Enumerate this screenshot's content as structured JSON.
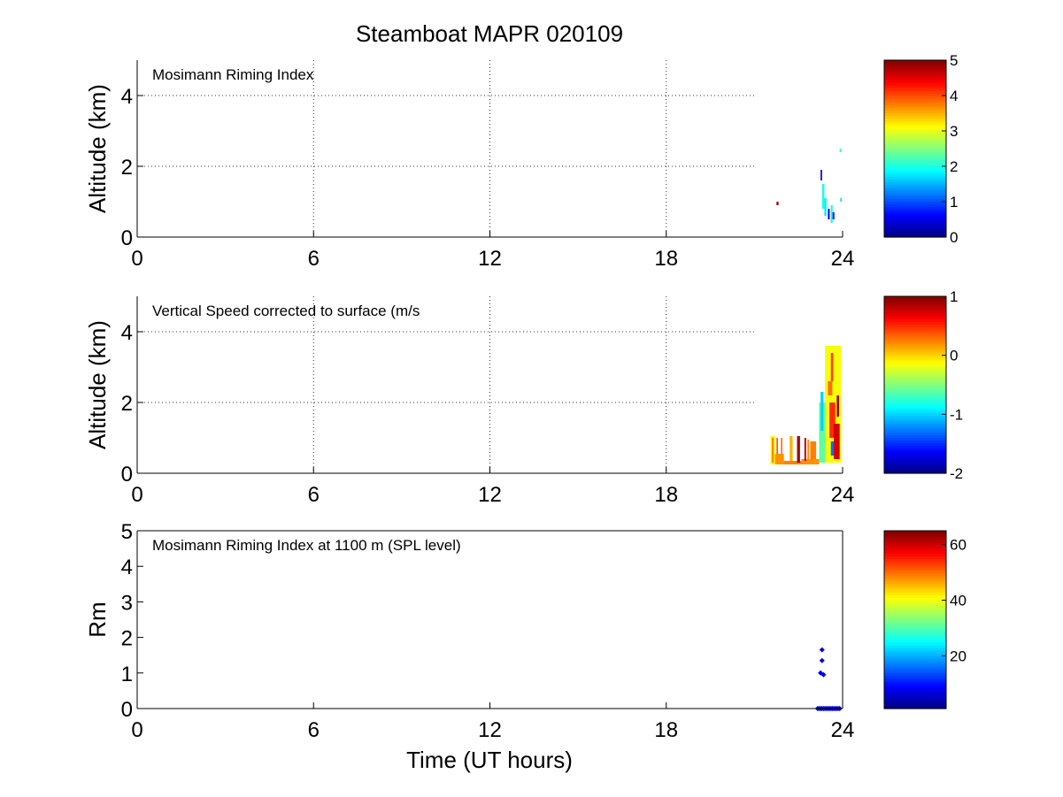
{
  "figure": {
    "title": "Steamboat MAPR 020109",
    "xlabel": "Time (UT hours)",
    "background": "#ffffff"
  },
  "chart_data": [
    {
      "type": "heatmap",
      "annotation": "Mosimann Riming Index",
      "ylabel": "Altitude (km)",
      "xlim": [
        0,
        24
      ],
      "ylim": [
        0,
        5
      ],
      "x_ticks": [
        "0",
        "6",
        "12",
        "18",
        "24"
      ],
      "y_ticks": [
        "0",
        "2",
        "4"
      ],
      "y_tick_values": [
        0,
        2,
        4
      ],
      "grid": true,
      "grid_note": "dotted grid lines stop near x=21 h",
      "colorbar": {
        "min": 0,
        "max": 5,
        "ticks": [
          "0",
          "1",
          "2",
          "3",
          "4",
          "5"
        ],
        "tick_values": [
          0,
          1,
          2,
          3,
          4,
          5
        ]
      },
      "cells": [
        {
          "t0": 21.75,
          "t1": 21.82,
          "z0": 0.9,
          "z1": 1.0,
          "v": 4.8
        },
        {
          "t0": 23.25,
          "t1": 23.3,
          "z0": 1.6,
          "z1": 1.9,
          "v": 0.3
        },
        {
          "t0": 23.3,
          "t1": 23.38,
          "z0": 0.8,
          "z1": 1.5,
          "v": 2.0
        },
        {
          "t0": 23.38,
          "t1": 23.45,
          "z0": 0.6,
          "z1": 1.1,
          "v": 1.8
        },
        {
          "t0": 23.5,
          "t1": 23.56,
          "z0": 0.5,
          "z1": 0.8,
          "v": 0.5
        },
        {
          "t0": 23.6,
          "t1": 23.66,
          "z0": 0.4,
          "z1": 0.9,
          "v": 1.9
        },
        {
          "t0": 23.66,
          "t1": 23.72,
          "z0": 0.5,
          "z1": 0.7,
          "v": 0.6
        },
        {
          "t0": 23.9,
          "t1": 23.95,
          "z0": 2.4,
          "z1": 2.5,
          "v": 2.0
        },
        {
          "t0": 23.92,
          "t1": 23.97,
          "z0": 1.0,
          "z1": 1.1,
          "v": 1.7
        }
      ]
    },
    {
      "type": "heatmap",
      "annotation": "Vertical Speed corrected to surface (m/s",
      "ylabel": "Altitude (km)",
      "xlim": [
        0,
        24
      ],
      "ylim": [
        0,
        5
      ],
      "x_ticks": [
        "0",
        "6",
        "12",
        "18",
        "24"
      ],
      "y_ticks": [
        "0",
        "2",
        "4"
      ],
      "y_tick_values": [
        0,
        2,
        4
      ],
      "grid": true,
      "grid_note": "dotted grid lines stop near x=21 h",
      "colorbar": {
        "min": -2,
        "max": 1,
        "ticks": [
          "-2",
          "-1",
          "0",
          "1"
        ],
        "tick_values": [
          -2,
          -1,
          0,
          1
        ]
      },
      "cells": [
        {
          "t0": 21.55,
          "t1": 21.7,
          "z0": 0.25,
          "z1": 1.05,
          "v": -0.1
        },
        {
          "t0": 21.6,
          "t1": 21.65,
          "z0": 0.3,
          "z1": 1.0,
          "v": 0.3
        },
        {
          "t0": 21.7,
          "t1": 22.0,
          "z0": 0.25,
          "z1": 0.55,
          "v": 0.2
        },
        {
          "t0": 21.75,
          "t1": 21.8,
          "z0": 0.55,
          "z1": 1.0,
          "v": 0.4
        },
        {
          "t0": 21.9,
          "t1": 21.95,
          "z0": 0.55,
          "z1": 1.0,
          "v": 0.3
        },
        {
          "t0": 22.0,
          "t1": 22.6,
          "z0": 0.25,
          "z1": 0.35,
          "v": 0.25
        },
        {
          "t0": 22.2,
          "t1": 22.3,
          "z0": 0.35,
          "z1": 1.05,
          "v": 0.1
        },
        {
          "t0": 22.45,
          "t1": 22.55,
          "z0": 0.3,
          "z1": 1.05,
          "v": 0.9
        },
        {
          "t0": 22.6,
          "t1": 23.2,
          "z0": 0.25,
          "z1": 0.4,
          "v": 0.2
        },
        {
          "t0": 22.7,
          "t1": 22.76,
          "z0": 0.35,
          "z1": 1.0,
          "v": 0.8
        },
        {
          "t0": 22.8,
          "t1": 22.86,
          "z0": 0.35,
          "z1": 0.95,
          "v": 0.2
        },
        {
          "t0": 22.9,
          "t1": 23.1,
          "z0": 0.4,
          "z1": 0.9,
          "v": 0.25
        },
        {
          "t0": 23.2,
          "t1": 23.4,
          "z0": 0.3,
          "z1": 2.0,
          "v": -0.6
        },
        {
          "t0": 23.25,
          "t1": 23.35,
          "z0": 1.2,
          "z1": 2.3,
          "v": -1.0
        },
        {
          "t0": 23.4,
          "t1": 23.95,
          "z0": 0.3,
          "z1": 3.6,
          "v": -0.15
        },
        {
          "t0": 23.5,
          "t1": 23.65,
          "z0": 2.2,
          "z1": 2.6,
          "v": 0.3
        },
        {
          "t0": 23.55,
          "t1": 23.75,
          "z0": 1.0,
          "z1": 2.0,
          "v": 0.5
        },
        {
          "t0": 23.6,
          "t1": 23.68,
          "z0": 2.6,
          "z1": 3.4,
          "v": 0.45
        },
        {
          "t0": 23.7,
          "t1": 23.9,
          "z0": 0.4,
          "z1": 1.4,
          "v": 0.75
        },
        {
          "t0": 23.6,
          "t1": 23.7,
          "z0": 0.5,
          "z1": 0.9,
          "v": -1.3
        },
        {
          "t0": 23.8,
          "t1": 23.88,
          "z0": 1.6,
          "z1": 2.2,
          "v": 0.9
        }
      ]
    },
    {
      "type": "scatter",
      "annotation": "Mosimann Riming Index at 1100 m (SPL level)",
      "ylabel": "Rm",
      "xlim": [
        0,
        24
      ],
      "ylim": [
        0,
        5
      ],
      "x_ticks": [
        "0",
        "6",
        "12",
        "18",
        "24"
      ],
      "y_ticks": [
        "0",
        "1",
        "2",
        "3",
        "4",
        "5"
      ],
      "y_tick_values": [
        0,
        1,
        2,
        3,
        4,
        5
      ],
      "grid": false,
      "colorbar": {
        "min": 1,
        "max": 65,
        "ticks": [
          "20",
          "40",
          "60"
        ],
        "tick_values": [
          20,
          40,
          60
        ]
      },
      "points": [
        {
          "x": 23.15,
          "y": 0.0
        },
        {
          "x": 23.2,
          "y": 0.0
        },
        {
          "x": 23.25,
          "y": 0.0
        },
        {
          "x": 23.3,
          "y": 0.0
        },
        {
          "x": 23.35,
          "y": 0.0
        },
        {
          "x": 23.4,
          "y": 0.0
        },
        {
          "x": 23.45,
          "y": 0.0
        },
        {
          "x": 23.5,
          "y": 0.0
        },
        {
          "x": 23.55,
          "y": 0.0
        },
        {
          "x": 23.6,
          "y": 0.0
        },
        {
          "x": 23.65,
          "y": 0.0
        },
        {
          "x": 23.7,
          "y": 0.0
        },
        {
          "x": 23.75,
          "y": 0.0
        },
        {
          "x": 23.8,
          "y": 0.0
        },
        {
          "x": 23.85,
          "y": 0.0
        },
        {
          "x": 23.9,
          "y": 0.0
        },
        {
          "x": 23.25,
          "y": 1.0
        },
        {
          "x": 23.35,
          "y": 0.95
        },
        {
          "x": 23.3,
          "y": 1.35
        },
        {
          "x": 23.3,
          "y": 1.65
        }
      ]
    }
  ]
}
